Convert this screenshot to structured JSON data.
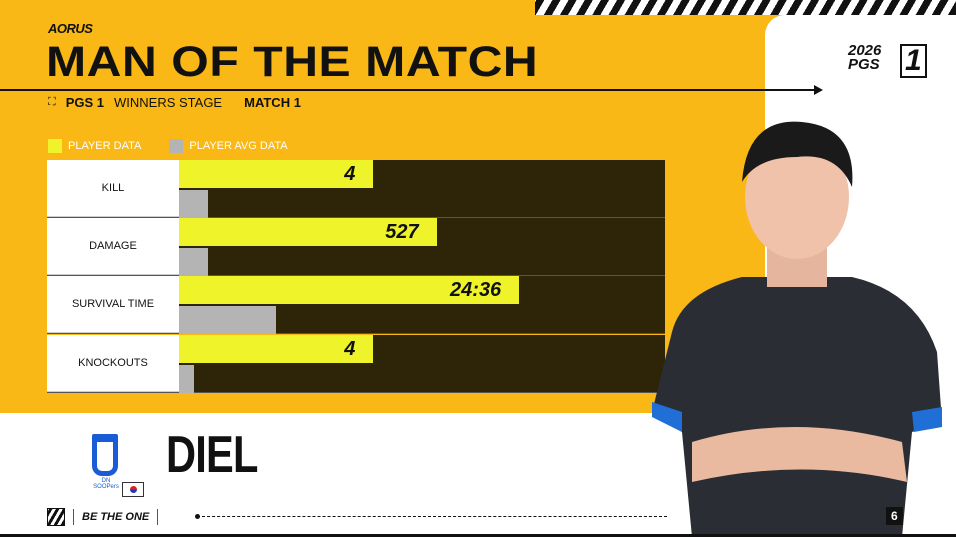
{
  "brand": {
    "sponsor_logo": "AORUS",
    "event_logo_year": "2026",
    "event_logo_name": "PGS",
    "event_logo_number": "1"
  },
  "header": {
    "title": "MAN OF THE MATCH",
    "event": "PGS 1",
    "stage": "WINNERS STAGE",
    "match": "MATCH 1",
    "expand_icon": "expand-icon"
  },
  "legend": {
    "player": "PLAYER DATA",
    "avg": "PLAYER AVG DATA"
  },
  "colors": {
    "background": "#f9b815",
    "player_bar": "#eef32a",
    "avg_bar": "#b4b4b4",
    "chart_bg": "#2e2407",
    "team": "#1a5cd6"
  },
  "stats": [
    {
      "label": "KILL",
      "value": "4",
      "player_fill": 0.4,
      "avg_fill": 0.06
    },
    {
      "label": "DAMAGE",
      "value": "527",
      "player_fill": 0.53,
      "avg_fill": 0.06
    },
    {
      "label": "SURVIVAL TIME",
      "value": "24:36",
      "player_fill": 0.7,
      "avg_fill": 0.2
    },
    {
      "label": "KNOCKOUTS",
      "value": "4",
      "player_fill": 0.4,
      "avg_fill": 0.03
    }
  ],
  "player": {
    "name": "DIEL",
    "team": "DN SOOPers",
    "country_flag": "south-korea-flag"
  },
  "footer": {
    "slogan": "BE THE ONE",
    "page": "6"
  }
}
